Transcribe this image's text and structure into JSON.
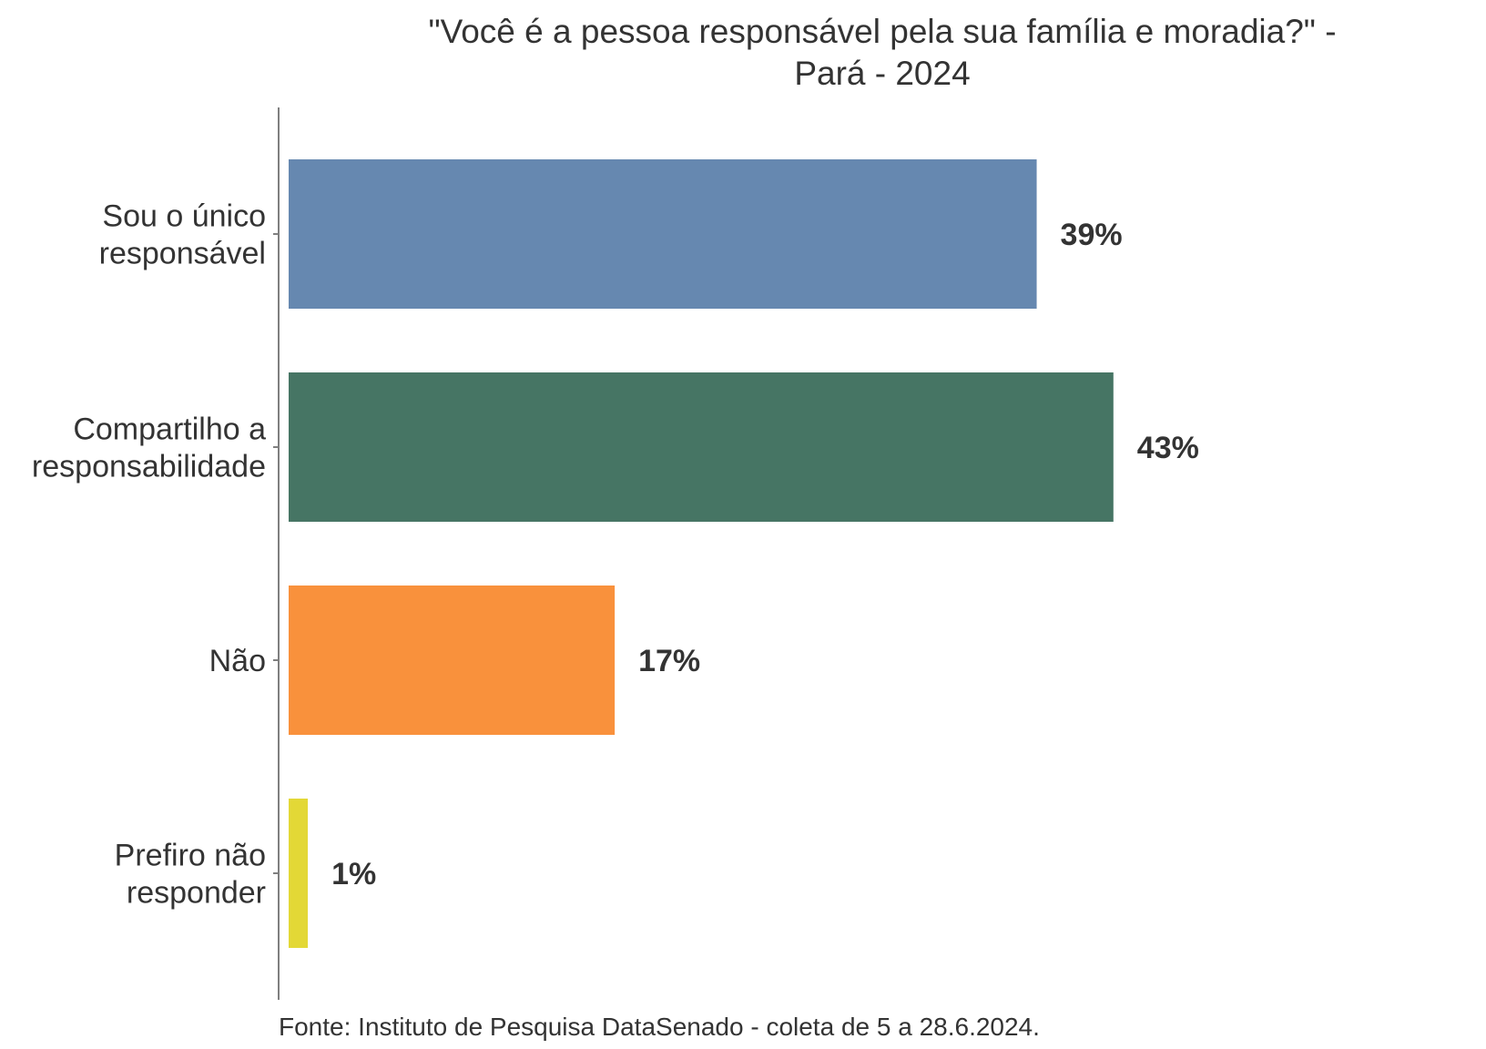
{
  "chart_data": {
    "type": "bar",
    "orientation": "horizontal",
    "title_lines": [
      "\"Você é a pessoa responsável pela sua família e moradia?\" -",
      "Pará - 2024"
    ],
    "categories": [
      [
        "Sou o único",
        "responsável"
      ],
      [
        "Compartilho a",
        "responsabilidade"
      ],
      [
        "Não"
      ],
      [
        "Prefiro não",
        "responder"
      ]
    ],
    "values": [
      39,
      43,
      17,
      1
    ],
    "value_labels": [
      "39%",
      "43%",
      "17%",
      "1%"
    ],
    "colors": [
      "#6688b0",
      "#467564",
      "#f9913c",
      "#e3d836"
    ],
    "xlim": [
      0,
      46
    ],
    "caption": "Fonte: Instituto de Pesquisa DataSenado - coleta de 5 a 28.6.2024.",
    "grid": false,
    "legend": "none"
  }
}
